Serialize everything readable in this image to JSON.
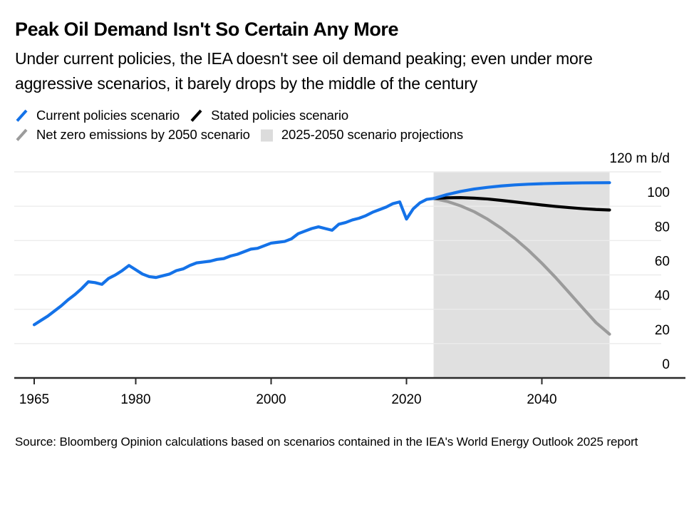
{
  "header": {
    "title": "Peak Oil Demand Isn't So Certain Any More",
    "subtitle": "Under current policies, the IEA doesn't see oil demand peaking; even under more aggressive scenarios, it barely drops by the middle of the century"
  },
  "legend": {
    "items": [
      {
        "label": "Current policies scenario",
        "marker": "slash",
        "color": "#1472E8"
      },
      {
        "label": "Stated policies scenario",
        "marker": "slash",
        "color": "#000000"
      },
      {
        "label": "Net zero emissions by 2050 scenario",
        "marker": "slash",
        "color": "#9B9B9B"
      },
      {
        "label": "2025-2050 scenario projections",
        "marker": "square",
        "color": "#DCDCDC"
      }
    ]
  },
  "chart_data": {
    "type": "line",
    "top_axis_label": "120 m b/d",
    "unit": "m b/d",
    "xlim": [
      1965,
      2050
    ],
    "ylim": [
      0,
      120
    ],
    "y_gridlines": [
      0,
      20,
      40,
      60,
      80,
      100,
      120
    ],
    "x_ticks": [
      1965,
      1980,
      2000,
      2020,
      2040
    ],
    "grid_on": true,
    "legend_position": "top",
    "projection_band": {
      "start": 2024,
      "end": 2050,
      "label": "2025-2050 scenario projections"
    },
    "colors": {
      "band": "#E0E0E0",
      "grid": "#ECECEC",
      "axis": "#2A2A2A",
      "historical": "#1472E8",
      "current_policies": "#1472E8",
      "stated_policies": "#000000",
      "net_zero": "#9B9B9B"
    },
    "series": [
      {
        "id": "historical",
        "name": "Historical oil demand",
        "color": "#1472E8",
        "x": [
          1965,
          1966,
          1967,
          1968,
          1969,
          1970,
          1971,
          1972,
          1973,
          1974,
          1975,
          1976,
          1977,
          1978,
          1979,
          1980,
          1981,
          1982,
          1983,
          1984,
          1985,
          1986,
          1987,
          1988,
          1989,
          1990,
          1991,
          1992,
          1993,
          1994,
          1995,
          1996,
          1997,
          1998,
          1999,
          2000,
          2001,
          2002,
          2003,
          2004,
          2005,
          2006,
          2007,
          2008,
          2009,
          2010,
          2011,
          2012,
          2013,
          2014,
          2015,
          2016,
          2017,
          2018,
          2019,
          2020,
          2021,
          2022,
          2023,
          2024
        ],
        "values": [
          31,
          33.5,
          36,
          39,
          42,
          45.5,
          48.5,
          52,
          56,
          55.5,
          54.5,
          58,
          60,
          62.5,
          65.5,
          63,
          60.5,
          59,
          58.5,
          59.5,
          60.5,
          62.5,
          63.5,
          65.5,
          67,
          67.5,
          68,
          69,
          69.5,
          71,
          72,
          73.5,
          75,
          75.5,
          77,
          78.5,
          79,
          79.5,
          81,
          84,
          85.5,
          87,
          88,
          87,
          86,
          89.5,
          90.5,
          92,
          93,
          94.5,
          96.5,
          98,
          99.5,
          101.5,
          102.5,
          92.5,
          98.5,
          102,
          104,
          104.5
        ]
      },
      {
        "id": "current-policies",
        "name": "Current policies scenario",
        "color": "#1472E8",
        "x": [
          2024,
          2026,
          2028,
          2030,
          2032,
          2034,
          2036,
          2038,
          2040,
          2043,
          2046,
          2050
        ],
        "values": [
          104.5,
          106.8,
          108.6,
          110,
          111,
          111.8,
          112.4,
          112.8,
          113.1,
          113.4,
          113.6,
          113.7
        ]
      },
      {
        "id": "stated-policies",
        "name": "Stated policies scenario",
        "color": "#000000",
        "x": [
          2024,
          2026,
          2028,
          2030,
          2032,
          2034,
          2036,
          2038,
          2040,
          2042,
          2044,
          2046,
          2048,
          2050
        ],
        "values": [
          104.5,
          104.9,
          105,
          104.7,
          104.2,
          103.4,
          102.5,
          101.6,
          100.7,
          99.9,
          99.2,
          98.6,
          98.1,
          97.8
        ]
      },
      {
        "id": "net-zero",
        "name": "Net zero emissions by 2050 scenario",
        "color": "#9B9B9B",
        "x": [
          2024,
          2026,
          2028,
          2030,
          2032,
          2034,
          2036,
          2038,
          2040,
          2042,
          2044,
          2046,
          2048,
          2050
        ],
        "values": [
          104.5,
          102.8,
          100.2,
          96.8,
          92.4,
          87.2,
          81.2,
          74.4,
          66.8,
          58.6,
          49.8,
          40.9,
          32.2,
          25.5
        ]
      }
    ]
  },
  "footer": {
    "source": "Source: Bloomberg Opinion calculations based on scenarios contained in the IEA's World Energy Outlook 2025 report"
  }
}
